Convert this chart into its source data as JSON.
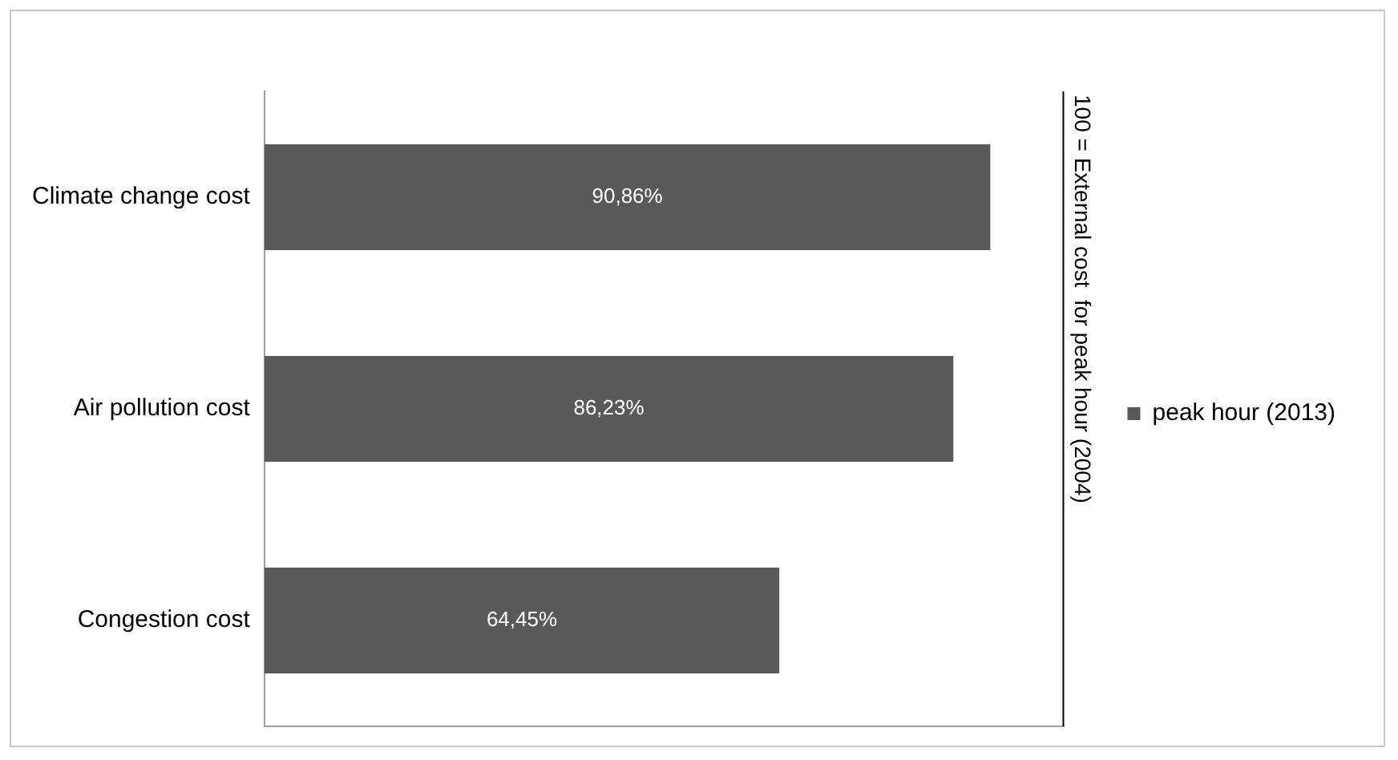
{
  "chart_data": {
    "type": "bar",
    "orientation": "horizontal",
    "categories": [
      "Climate change cost",
      "Air pollution cost",
      "Congestion cost"
    ],
    "series": [
      {
        "name": "peak hour (2013)",
        "color": "#595959",
        "values": [
          90.86,
          86.23,
          64.45
        ],
        "value_labels": [
          "90,86%",
          "86,23%",
          "64,45%"
        ]
      }
    ],
    "xlim": [
      0,
      100
    ],
    "tick_labels": "y",
    "grid": false,
    "legend": "right",
    "ref_lines": [
      {
        "axis": "x",
        "value": 100,
        "label": "100 = External cost  for peak hour (2004)",
        "color": "#000000"
      }
    ]
  }
}
